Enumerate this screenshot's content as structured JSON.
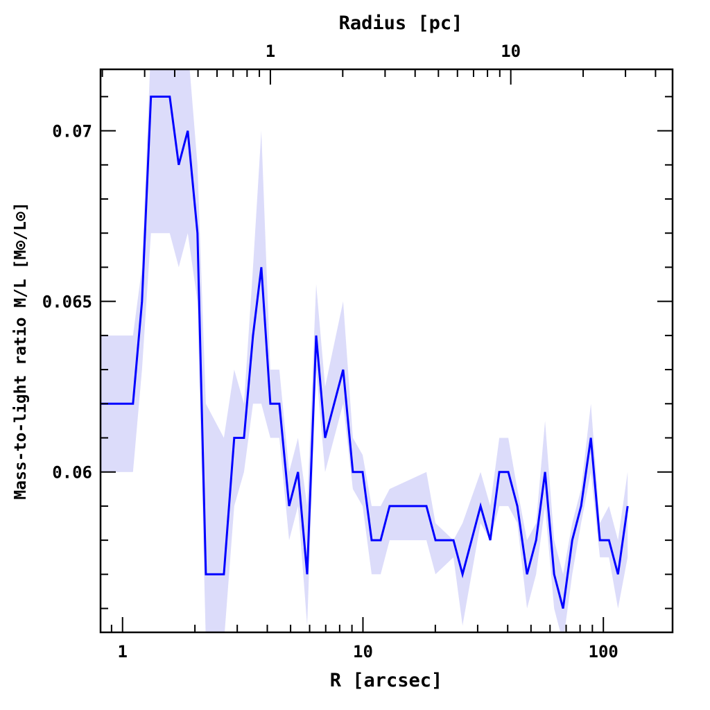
{
  "chart_data": {
    "type": "line",
    "title": "",
    "xlabel": "R [arcsec]",
    "x2label": "Radius [pc]",
    "ylabel": "Mass-to-light ratio M/L [M⊙/L⊙]",
    "xscale": "log",
    "xlim": [
      0.81,
      194
    ],
    "ylim": [
      0.0553,
      0.0718
    ],
    "x_ticks": [
      "1",
      "10",
      "100"
    ],
    "x2_ticks": [
      "1",
      "10"
    ],
    "y_ticks": [
      "0.06",
      "0.065",
      "0.07"
    ],
    "colors": {
      "line": "#0000ff",
      "band": "#dcdcfa"
    },
    "series": [
      {
        "name": "M/L",
        "x": [
          0.81,
          1.105,
          1.205,
          1.313,
          1.571,
          1.713,
          1.868,
          2.05,
          2.221,
          2.639,
          2.915,
          3.2,
          3.488,
          3.778,
          4.12,
          4.49,
          4.93,
          5.37,
          5.86,
          6.39,
          6.96,
          8.27,
          9.08,
          9.97,
          10.87,
          11.85,
          12.91,
          18.37,
          20.03,
          23.8,
          25.95,
          30.85,
          33.85,
          36.91,
          40.23,
          43.86,
          48.14,
          52.5,
          57.2,
          62.4,
          68.0,
          74.2,
          80.8,
          88.7,
          96.7,
          105.5,
          115.0,
          126.2
        ],
        "y": [
          0.062,
          0.062,
          0.065,
          0.071,
          0.071,
          0.069,
          0.07,
          0.067,
          0.057,
          0.057,
          0.061,
          0.061,
          0.064,
          0.066,
          0.062,
          0.062,
          0.059,
          0.06,
          0.057,
          0.064,
          0.061,
          0.063,
          0.06,
          0.06,
          0.058,
          0.058,
          0.059,
          0.059,
          0.058,
          0.058,
          0.057,
          0.059,
          0.058,
          0.06,
          0.06,
          0.059,
          0.057,
          0.058,
          0.06,
          0.057,
          0.056,
          0.058,
          0.059,
          0.061,
          0.058,
          0.058,
          0.057,
          0.059
        ],
        "y_lo": [
          0.06,
          0.06,
          0.063,
          0.067,
          0.067,
          0.066,
          0.067,
          0.065,
          0.055,
          0.055,
          0.059,
          0.06,
          0.062,
          0.062,
          0.061,
          0.061,
          0.058,
          0.059,
          0.0555,
          0.063,
          0.06,
          0.062,
          0.0595,
          0.059,
          0.057,
          0.057,
          0.058,
          0.058,
          0.057,
          0.0575,
          0.0555,
          0.0585,
          0.058,
          0.059,
          0.059,
          0.0585,
          0.056,
          0.057,
          0.059,
          0.056,
          0.055,
          0.057,
          0.0585,
          0.06,
          0.0575,
          0.0575,
          0.056,
          0.0575
        ],
        "y_hi": [
          0.064,
          0.064,
          0.066,
          0.0725,
          0.0725,
          0.0725,
          0.0725,
          0.069,
          0.062,
          0.061,
          0.063,
          0.062,
          0.066,
          0.07,
          0.063,
          0.063,
          0.06,
          0.061,
          0.059,
          0.0655,
          0.0625,
          0.065,
          0.061,
          0.0605,
          0.059,
          0.059,
          0.0595,
          0.06,
          0.0585,
          0.058,
          0.0585,
          0.06,
          0.059,
          0.061,
          0.061,
          0.0595,
          0.058,
          0.0585,
          0.0615,
          0.058,
          0.057,
          0.0585,
          0.0595,
          0.062,
          0.0585,
          0.059,
          0.058,
          0.06
        ]
      }
    ]
  }
}
